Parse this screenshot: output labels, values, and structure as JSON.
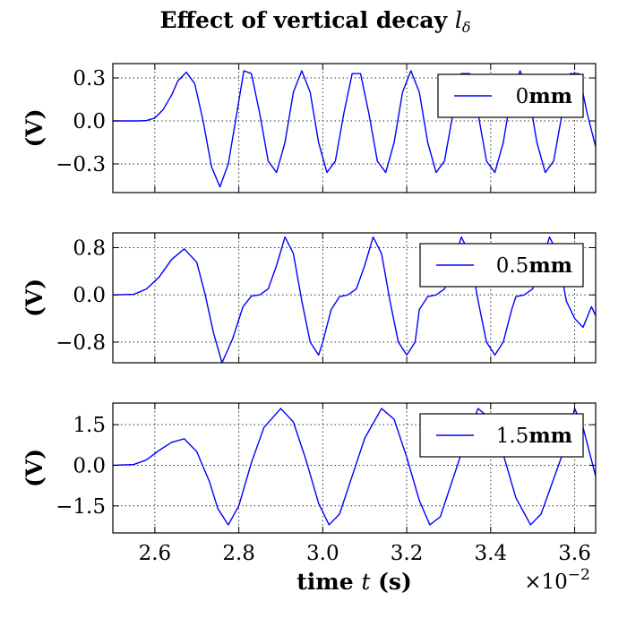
{
  "figure": {
    "title": "Effect of vertical decay lδ",
    "multiplier": "×10−2"
  },
  "chart_data": [
    {
      "type": "line",
      "xlim": [
        2.5,
        3.65
      ],
      "ylim": [
        -0.5,
        0.4
      ],
      "yticks": [
        -0.3,
        0.0,
        0.3
      ],
      "yticklabels": [
        "−0.3",
        "0.0",
        "0.3"
      ],
      "xticks": [
        2.6,
        2.8,
        3.0,
        3.2,
        3.4,
        3.6
      ],
      "xticklabels": [],
      "ylabel": "(V)",
      "xlabel": "",
      "grid": true,
      "legend_position": "upper-right",
      "series": [
        {
          "name": "0mm",
          "color": "#0000ff",
          "x": [
            2.5,
            2.56,
            2.58,
            2.6,
            2.62,
            2.64,
            2.655,
            2.675,
            2.695,
            2.715,
            2.735,
            2.755,
            2.775,
            2.795,
            2.812,
            2.83,
            2.85,
            2.87,
            2.89,
            2.91,
            2.93,
            2.95,
            2.97,
            2.99,
            3.01,
            3.03,
            3.05,
            3.07,
            3.09,
            3.11,
            3.13,
            3.15,
            3.17,
            3.19,
            3.21,
            3.23,
            3.25,
            3.27,
            3.29,
            3.31,
            3.33,
            3.35,
            3.37,
            3.39,
            3.41,
            3.43,
            3.45,
            3.47,
            3.49,
            3.51,
            3.53,
            3.55,
            3.57,
            3.59,
            3.61,
            3.63,
            3.65
          ],
          "y": [
            0.0,
            0.0,
            0.003,
            0.02,
            0.08,
            0.18,
            0.28,
            0.34,
            0.26,
            0.0,
            -0.32,
            -0.46,
            -0.3,
            0.05,
            0.35,
            0.33,
            0.05,
            -0.28,
            -0.36,
            -0.15,
            0.2,
            0.35,
            0.2,
            -0.15,
            -0.36,
            -0.28,
            0.05,
            0.33,
            0.33,
            0.05,
            -0.28,
            -0.36,
            -0.15,
            0.2,
            0.35,
            0.2,
            -0.15,
            -0.36,
            -0.28,
            0.05,
            0.33,
            0.33,
            0.05,
            -0.28,
            -0.36,
            -0.15,
            0.2,
            0.35,
            0.2,
            -0.15,
            -0.36,
            -0.28,
            0.05,
            0.33,
            0.33,
            0.05,
            -0.18
          ]
        }
      ]
    },
    {
      "type": "line",
      "xlim": [
        2.5,
        3.65
      ],
      "ylim": [
        -1.15,
        1.05
      ],
      "yticks": [
        -0.8,
        0.0,
        0.8
      ],
      "yticklabels": [
        "−0.8",
        "0.0",
        "0.8"
      ],
      "xticks": [
        2.6,
        2.8,
        3.0,
        3.2,
        3.4,
        3.6
      ],
      "xticklabels": [],
      "ylabel": "(V)",
      "xlabel": "",
      "grid": true,
      "legend_position": "upper-right",
      "series": [
        {
          "name": "0.5mm",
          "color": "#0000ff",
          "x": [
            2.5,
            2.55,
            2.58,
            2.61,
            2.64,
            2.67,
            2.7,
            2.72,
            2.74,
            2.76,
            2.785,
            2.81,
            2.83,
            2.85,
            2.87,
            2.89,
            2.91,
            2.93,
            2.95,
            2.97,
            2.99,
            3.0,
            3.02,
            3.04,
            3.06,
            3.08,
            3.1,
            3.12,
            3.14,
            3.16,
            3.18,
            3.2,
            3.22,
            3.23,
            3.25,
            3.27,
            3.29,
            3.31,
            3.33,
            3.35,
            3.37,
            3.39,
            3.41,
            3.43,
            3.45,
            3.46,
            3.48,
            3.5,
            3.52,
            3.54,
            3.56,
            3.58,
            3.6,
            3.62,
            3.64,
            3.65
          ],
          "y": [
            0.0,
            0.01,
            0.1,
            0.3,
            0.6,
            0.78,
            0.55,
            0.0,
            -0.65,
            -1.15,
            -0.75,
            -0.2,
            -0.02,
            0.0,
            0.1,
            0.5,
            0.98,
            0.7,
            -0.1,
            -0.8,
            -1.02,
            -0.8,
            -0.25,
            -0.03,
            0.0,
            0.1,
            0.5,
            0.98,
            0.7,
            -0.1,
            -0.8,
            -1.02,
            -0.8,
            -0.25,
            -0.03,
            0.0,
            0.1,
            0.5,
            0.98,
            0.7,
            -0.1,
            -0.8,
            -1.02,
            -0.8,
            -0.25,
            -0.03,
            0.0,
            0.1,
            0.5,
            0.98,
            0.7,
            -0.1,
            -0.4,
            -0.55,
            -0.2,
            -0.35
          ]
        }
      ]
    },
    {
      "type": "line",
      "xlim": [
        2.5,
        3.65
      ],
      "ylim": [
        -2.5,
        2.3
      ],
      "yticks": [
        -1.5,
        0.0,
        1.5
      ],
      "yticklabels": [
        "−1.5",
        "0.0",
        "1.5"
      ],
      "xticks": [
        2.6,
        2.8,
        3.0,
        3.2,
        3.4,
        3.6
      ],
      "xticklabels": [
        "2.6",
        "2.8",
        "3.0",
        "3.2",
        "3.4",
        "3.6"
      ],
      "ylabel": "(V)",
      "xlabel": "time t (s)",
      "grid": true,
      "legend_position": "upper-right",
      "series": [
        {
          "name": "1.5mm",
          "color": "#0000ff",
          "x": [
            2.5,
            2.55,
            2.58,
            2.61,
            2.64,
            2.67,
            2.7,
            2.73,
            2.75,
            2.775,
            2.8,
            2.83,
            2.86,
            2.9,
            2.93,
            2.96,
            2.99,
            3.015,
            3.04,
            3.07,
            3.1,
            3.14,
            3.17,
            3.2,
            3.23,
            3.255,
            3.28,
            3.31,
            3.34,
            3.37,
            3.4,
            3.43,
            3.46,
            3.495,
            3.52,
            3.55,
            3.58,
            3.6,
            3.62,
            3.65
          ],
          "y": [
            0.0,
            0.03,
            0.2,
            0.55,
            0.85,
            0.98,
            0.5,
            -0.6,
            -1.6,
            -2.2,
            -1.5,
            0.1,
            1.4,
            2.1,
            1.6,
            0.2,
            -1.4,
            -2.2,
            -1.8,
            -0.4,
            1.0,
            2.1,
            1.7,
            0.3,
            -1.3,
            -2.2,
            -1.9,
            -0.5,
            0.9,
            2.1,
            1.7,
            0.4,
            -1.2,
            -2.2,
            -1.8,
            -0.5,
            0.8,
            2.1,
            1.4,
            -0.4
          ]
        }
      ]
    }
  ]
}
